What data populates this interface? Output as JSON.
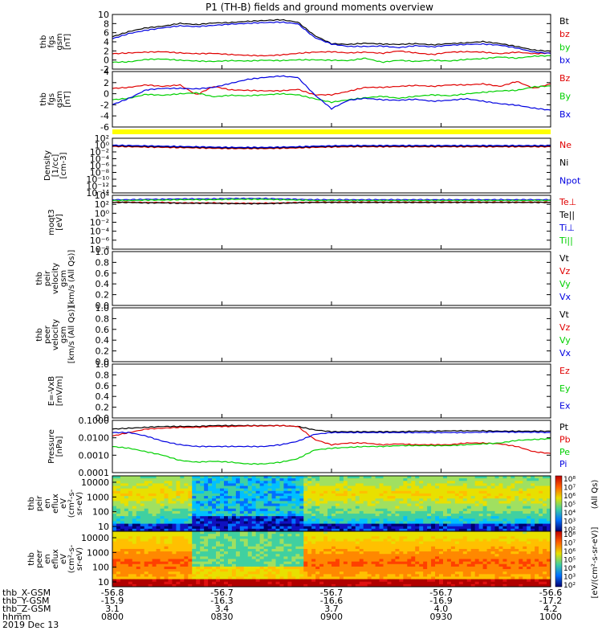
{
  "title": "P1 (TH-B) fields and ground moments overview",
  "colors": {
    "black": "#000000",
    "red": "#e00000",
    "green": "#00d000",
    "blue": "#0000e0",
    "yellow": "#ffff00"
  },
  "chart_data": [
    {
      "type": "line",
      "id": "fgs",
      "ylabel": [
        "thb",
        "fgs",
        "gsm",
        "[nT]"
      ],
      "yticks": [
        "10",
        "8",
        "6",
        "4",
        "2",
        "0",
        "-2"
      ],
      "ylim": [
        -3,
        10.5
      ],
      "series": [
        {
          "name": "Bt",
          "color": "black",
          "values": [
            5.0,
            6.3,
            7.2,
            7.6,
            8.3,
            8.0,
            8.4,
            8.5,
            8.8,
            9.0,
            9.2,
            8.6,
            5.3,
            3.3,
            3.1,
            3.4,
            3.2,
            3.1,
            3.3,
            3.0,
            3.3,
            3.5,
            3.8,
            3.3,
            2.6,
            1.7,
            1.4
          ]
        },
        {
          "name": "bz",
          "color": "red",
          "values": [
            0.8,
            1.0,
            1.2,
            1.3,
            1.0,
            0.8,
            0.9,
            0.6,
            0.4,
            0.3,
            0.5,
            0.9,
            1.2,
            1.3,
            1.0,
            1.2,
            0.9,
            1.5,
            1.0,
            0.6,
            1.2,
            1.3,
            1.2,
            0.8,
            1.2,
            0.8,
            1.0
          ]
        },
        {
          "name": "by",
          "color": "green",
          "values": [
            -1.3,
            -1.2,
            -0.6,
            -0.5,
            -0.8,
            -1.0,
            -1.1,
            -0.9,
            -1.0,
            -0.8,
            -0.9,
            -0.7,
            -0.7,
            -0.8,
            -0.9,
            -0.3,
            -1.3,
            -0.8,
            -1.1,
            -0.8,
            -1.0,
            -0.6,
            -0.4,
            0.0,
            -0.3,
            0.2,
            0.3
          ]
        },
        {
          "name": "bx",
          "color": "blue",
          "values": [
            4.5,
            5.8,
            6.6,
            7.2,
            7.7,
            7.5,
            7.8,
            8.1,
            8.3,
            8.5,
            8.6,
            8.2,
            4.8,
            3.2,
            2.6,
            2.6,
            2.7,
            2.3,
            2.8,
            2.5,
            2.9,
            3.1,
            3.2,
            2.9,
            2.2,
            1.2,
            0.9
          ]
        }
      ]
    },
    {
      "type": "line",
      "id": "fgs2",
      "ylabel": [
        "thb",
        "fgs",
        "gsm",
        "[nT]"
      ],
      "yticks": [
        "4",
        "2",
        "0",
        "-2",
        "-4",
        "-6"
      ],
      "ylim": [
        -7,
        4.2
      ],
      "series": [
        {
          "name": "Bz",
          "color": "red",
          "values": [
            0.8,
            1.0,
            1.5,
            1.2,
            1.5,
            -0.5,
            1.2,
            0.5,
            0.4,
            0.3,
            0.3,
            0.6,
            -0.5,
            -0.5,
            0.2,
            1.0,
            1.0,
            1.2,
            1.4,
            1.2,
            1.5,
            1.5,
            1.7,
            1.2,
            2.2,
            0.8,
            1.7
          ]
        },
        {
          "name": "By",
          "color": "green",
          "values": [
            -1.5,
            -1.2,
            -0.4,
            -0.6,
            -0.3,
            -0.1,
            -0.9,
            -0.6,
            -0.7,
            -0.5,
            -0.3,
            -0.5,
            -1.3,
            -2.0,
            -1.5,
            -1.1,
            -0.8,
            -1.2,
            -0.8,
            -0.5,
            -0.7,
            -0.3,
            0.0,
            0.3,
            0.4,
            1.1,
            1.3
          ]
        },
        {
          "name": "Bx",
          "color": "blue",
          "values": [
            -2.5,
            -1.2,
            0.5,
            0.8,
            0.8,
            0.7,
            1.0,
            1.8,
            2.6,
            3.0,
            3.3,
            3.0,
            -0.5,
            -3.3,
            -1.6,
            -1.2,
            -1.5,
            -1.6,
            -1.4,
            -1.8,
            -1.6,
            -1.3,
            -1.8,
            -2.3,
            -2.6,
            -3.2,
            -3.6
          ]
        }
      ]
    },
    {
      "type": "line",
      "id": "density",
      "log": true,
      "ylabel": [
        "Density",
        "[1/cc]",
        "[cm-3]"
      ],
      "yticks": [
        "10²",
        "10⁰",
        "10⁻²",
        "10⁻⁴",
        "10⁻⁶",
        "10⁻⁸",
        "10⁻¹⁰",
        "10⁻¹²",
        "10⁻¹⁴"
      ],
      "ylim": [
        -15,
        3
      ],
      "series": [
        {
          "name": "Ne",
          "color": "red",
          "values": [
            0.3,
            0.2,
            0.1,
            0.0,
            -0.1,
            -0.2,
            -0.3,
            -0.4,
            -0.4,
            -0.4,
            -0.3,
            -0.2,
            0.0,
            0.1,
            0.2,
            0.2,
            0.2,
            0.2,
            0.2,
            0.2,
            0.2,
            0.2,
            0.2,
            0.2,
            0.2,
            0.2,
            0.2
          ]
        },
        {
          "name": "Ni",
          "color": "black",
          "values": [
            0.5,
            0.4,
            0.3,
            0.2,
            0.1,
            0.0,
            -0.1,
            -0.2,
            -0.2,
            -0.2,
            -0.1,
            0.0,
            0.2,
            0.3,
            0.4,
            0.4,
            0.4,
            0.4,
            0.4,
            0.4,
            0.4,
            0.4,
            0.4,
            0.4,
            0.4,
            0.4,
            0.4
          ]
        },
        {
          "name": "Npot",
          "color": "blue",
          "values": [
            0.7,
            0.6,
            0.5,
            0.4,
            0.3,
            0.2,
            0.1,
            0.0,
            0.0,
            0.0,
            0.1,
            0.2,
            0.4,
            0.5,
            0.6,
            0.6,
            0.6,
            0.6,
            0.6,
            0.6,
            0.6,
            0.6,
            0.6,
            0.6,
            0.6,
            0.6,
            0.6
          ]
        }
      ]
    },
    {
      "type": "line",
      "id": "temp",
      "log": true,
      "ylabel": [
        "moqt3",
        "[eV]"
      ],
      "yticks": [
        "10⁴",
        "10²",
        "10⁰",
        "10⁻²",
        "10⁻⁴",
        "10⁻⁶",
        "10⁻⁸"
      ],
      "ylim": [
        -9,
        4.5
      ],
      "series": [
        {
          "name": "Te⊥",
          "color": "red",
          "values": [
            2.8,
            2.8,
            2.7,
            2.7,
            2.6,
            2.6,
            2.6,
            2.5,
            2.5,
            2.5,
            2.6,
            2.7,
            2.8,
            2.8,
            2.8,
            2.8,
            2.8,
            2.8,
            2.8,
            2.8,
            2.8,
            2.8,
            2.8,
            2.8,
            2.8,
            2.8,
            2.8
          ]
        },
        {
          "name": "Te||",
          "color": "black",
          "values": [
            2.7,
            2.7,
            2.6,
            2.6,
            2.5,
            2.5,
            2.5,
            2.4,
            2.4,
            2.4,
            2.5,
            2.6,
            2.7,
            2.7,
            2.7,
            2.7,
            2.7,
            2.7,
            2.7,
            2.7,
            2.7,
            2.7,
            2.7,
            2.7,
            2.7,
            2.7,
            2.7
          ]
        },
        {
          "name": "Ti⊥",
          "color": "blue",
          "values": [
            3.4,
            3.4,
            3.5,
            3.5,
            3.6,
            3.6,
            3.6,
            3.7,
            3.7,
            3.7,
            3.6,
            3.5,
            3.4,
            3.4,
            3.4,
            3.4,
            3.4,
            3.4,
            3.4,
            3.4,
            3.4,
            3.4,
            3.4,
            3.4,
            3.4,
            3.4,
            3.4
          ]
        },
        {
          "name": "Ti||",
          "color": "green",
          "values": [
            3.2,
            3.2,
            3.3,
            3.3,
            3.4,
            3.4,
            3.4,
            3.5,
            3.5,
            3.5,
            3.4,
            3.3,
            3.2,
            3.2,
            3.2,
            3.2,
            3.2,
            3.2,
            3.2,
            3.2,
            3.2,
            3.2,
            3.2,
            3.2,
            3.2,
            3.2,
            3.2
          ]
        }
      ]
    },
    {
      "type": "line",
      "id": "peir-vel",
      "ylabel": [
        "thb",
        "peir",
        "velocity",
        "gsm",
        "[km/s (All Qs)]"
      ],
      "yticks": [
        "1.0",
        "0.8",
        "0.6",
        "0.4",
        "0.2",
        "0.0"
      ],
      "ylim": [
        0,
        1
      ],
      "series": [
        {
          "name": "Vt",
          "color": "black",
          "values": []
        },
        {
          "name": "Vz",
          "color": "red",
          "values": []
        },
        {
          "name": "Vy",
          "color": "green",
          "values": []
        },
        {
          "name": "Vx",
          "color": "blue",
          "values": []
        }
      ]
    },
    {
      "type": "line",
      "id": "peer-vel",
      "ylabel": [
        "thb",
        "peer",
        "velocity",
        "gsm",
        "[km/s (All Qs)]"
      ],
      "yticks": [
        "1.0",
        "0.8",
        "0.6",
        "0.4",
        "0.2",
        "0.0"
      ],
      "ylim": [
        0,
        1
      ],
      "series": [
        {
          "name": "Vt",
          "color": "black",
          "values": []
        },
        {
          "name": "Vz",
          "color": "red",
          "values": []
        },
        {
          "name": "Vy",
          "color": "green",
          "values": []
        },
        {
          "name": "Vx",
          "color": "blue",
          "values": []
        }
      ]
    },
    {
      "type": "line",
      "id": "efield",
      "ylabel": [
        "E=-VxB",
        "[mV/m]"
      ],
      "yticks": [
        "1.0",
        "0.8",
        "0.6",
        "0.4",
        "0.2",
        "0.0"
      ],
      "ylim": [
        0,
        1
      ],
      "series": [
        {
          "name": "Ez",
          "color": "red",
          "values": []
        },
        {
          "name": "Ey",
          "color": "green",
          "values": []
        },
        {
          "name": "Ex",
          "color": "blue",
          "values": []
        }
      ]
    },
    {
      "type": "line",
      "id": "pressure",
      "log": true,
      "ylabel": [
        "Pressure",
        "[nPa]"
      ],
      "yticks": [
        "0.1000",
        "0.0100",
        "0.0010",
        "0.0001"
      ],
      "ylim": [
        -4,
        -1
      ],
      "series": [
        {
          "name": "Pt",
          "color": "black",
          "values": [
            -1.5,
            -1.45,
            -1.4,
            -1.35,
            -1.35,
            -1.35,
            -1.3,
            -1.3,
            -1.3,
            -1.3,
            -1.3,
            -1.35,
            -1.55,
            -1.65,
            -1.65,
            -1.65,
            -1.65,
            -1.65,
            -1.62,
            -1.62,
            -1.6,
            -1.6,
            -1.6,
            -1.62,
            -1.62,
            -1.62,
            -1.62
          ]
        },
        {
          "name": "Pb",
          "color": "red",
          "values": [
            -1.9,
            -1.7,
            -1.5,
            -1.45,
            -1.4,
            -1.4,
            -1.35,
            -1.35,
            -1.32,
            -1.32,
            -1.3,
            -1.35,
            -2.1,
            -2.4,
            -2.3,
            -2.3,
            -2.4,
            -2.35,
            -2.4,
            -2.4,
            -2.4,
            -2.3,
            -2.3,
            -2.35,
            -2.5,
            -2.8,
            -2.9
          ]
        },
        {
          "name": "Pe",
          "color": "green",
          "values": [
            -2.5,
            -2.6,
            -2.8,
            -3.0,
            -3.3,
            -3.4,
            -3.35,
            -3.4,
            -3.5,
            -3.5,
            -3.4,
            -3.2,
            -2.7,
            -2.6,
            -2.55,
            -2.5,
            -2.5,
            -2.45,
            -2.45,
            -2.45,
            -2.45,
            -2.4,
            -2.35,
            -2.3,
            -2.15,
            -2.1,
            -2.05
          ]
        },
        {
          "name": "Pi",
          "color": "blue",
          "values": [
            -1.7,
            -1.7,
            -1.9,
            -2.2,
            -2.4,
            -2.5,
            -2.5,
            -2.5,
            -2.5,
            -2.5,
            -2.4,
            -2.2,
            -1.8,
            -1.7,
            -1.7,
            -1.7,
            -1.7,
            -1.7,
            -1.7,
            -1.7,
            -1.7,
            -1.7,
            -1.68,
            -1.66,
            -1.68,
            -1.68,
            -1.7
          ]
        }
      ]
    },
    {
      "type": "heatmap",
      "id": "peir-en",
      "ylabel": [
        "thb",
        "peir",
        "en",
        "eflux",
        "eV",
        "(cm²-s-",
        "sr-eV)"
      ],
      "yticks": [
        "10000",
        "1000",
        "100",
        "10"
      ],
      "colorbar": {
        "label": "[eV/(cm²-s-sr-eV)]",
        "ticks": [
          "10⁸",
          "10⁷",
          "10⁶",
          "10⁵",
          "10⁴",
          "10³",
          "10²"
        ]
      }
    },
    {
      "type": "heatmap",
      "id": "peer-en",
      "ylabel": [
        "thb",
        "peer",
        "en",
        "eflux",
        "eV",
        "(cm²-s-",
        "sr-eV)"
      ],
      "yticks": [
        "10000",
        "1000",
        "100",
        "10"
      ],
      "colorbar": {
        "label": "[eV/(cm²-s-sr-eV)]",
        "ticks": [
          "10⁸",
          "10⁷",
          "10⁶",
          "10⁵",
          "10⁴",
          "10³",
          "10²"
        ]
      }
    }
  ],
  "time_axis": {
    "rows": [
      {
        "label": "thb_X-GSM",
        "values": [
          "-56.8",
          "-56.7",
          "-56.7",
          "-56.7",
          "-56.6"
        ]
      },
      {
        "label": "thb_Y-GSM",
        "values": [
          "-15.9",
          "-16.3",
          "-16.6",
          "-16.9",
          "-17.2"
        ]
      },
      {
        "label": "thb_Z-GSM",
        "values": [
          "3.1",
          "3.4",
          "3.7",
          "4.0",
          "4.2"
        ]
      },
      {
        "label": "hhmm",
        "values": [
          "0800",
          "0830",
          "0900",
          "0930",
          "1000"
        ]
      }
    ],
    "date": "2019 Dec 13"
  },
  "colorbar_label": "[eV/(cm²-s-sr-eV)]",
  "colorbar_qual": "(All Qs)"
}
